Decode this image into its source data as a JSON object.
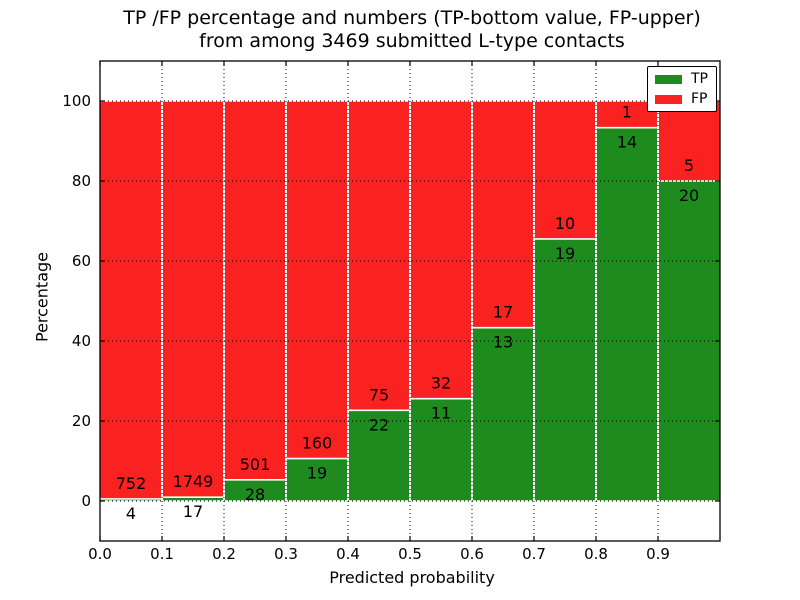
{
  "title": {
    "line1": "TP /FP percentage and numbers (TP-bottom value, FP-upper)",
    "line2": "from among 3469 submitted L-type contacts"
  },
  "axes": {
    "xlabel": "Predicted probability",
    "ylabel": "Percentage"
  },
  "legend": {
    "items": [
      {
        "label": "TP",
        "color": "#1e8b1e"
      },
      {
        "label": "FP",
        "color": "#fa2121"
      }
    ]
  },
  "chart_data": {
    "type": "bar",
    "stacked": true,
    "normalized_to": 100,
    "title": "TP /FP percentage and numbers (TP-bottom value, FP-upper) from among 3469 submitted L-type contacts",
    "xlabel": "Predicted probability",
    "ylabel": "Percentage",
    "total_contacts": 3469,
    "bin_edges": [
      0.0,
      0.1,
      0.2,
      0.3,
      0.4,
      0.5,
      0.6,
      0.7,
      0.8,
      0.9,
      1.0
    ],
    "x_tick_labels": [
      "0.0",
      "0.1",
      "0.2",
      "0.3",
      "0.4",
      "0.5",
      "0.6",
      "0.7",
      "0.8",
      "0.9"
    ],
    "y_ticks": [
      0,
      20,
      40,
      60,
      80,
      100
    ],
    "y_tick_labels": [
      "0",
      "20",
      "40",
      "60",
      "80",
      "100"
    ],
    "xlim": [
      0.0,
      1.0
    ],
    "ylim": [
      -10,
      110
    ],
    "grid": true,
    "grid_style": "dotted",
    "legend_position": "upper right",
    "series": [
      {
        "name": "TP",
        "color": "#1e8b1e",
        "counts": [
          4,
          17,
          28,
          19,
          22,
          11,
          13,
          19,
          14,
          20
        ]
      },
      {
        "name": "FP",
        "color": "#fa2121",
        "counts": [
          752,
          1749,
          501,
          160,
          75,
          32,
          17,
          10,
          1,
          5
        ]
      }
    ],
    "tp_percent": [
      0.53,
      0.96,
      5.29,
      10.62,
      22.68,
      25.58,
      43.33,
      65.52,
      93.33,
      80.0
    ]
  }
}
